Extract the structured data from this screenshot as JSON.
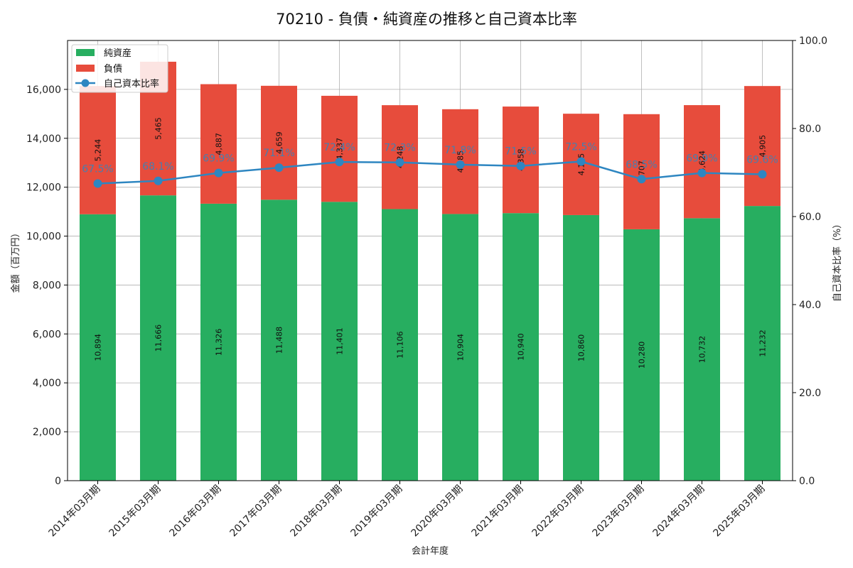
{
  "chart_data": {
    "type": "bar",
    "title": "70210 - 負債・純資産の推移と自己資本比率",
    "xlabel": "会計年度",
    "ylabel": "金額（百万円）",
    "y2label": "自己資本比率（%）",
    "ylim": [
      0,
      18000
    ],
    "y2lim": [
      0,
      100
    ],
    "yticks": [
      0,
      2000,
      4000,
      6000,
      8000,
      10000,
      12000,
      14000,
      16000
    ],
    "y2ticks": [
      0,
      20,
      40,
      60,
      80,
      100
    ],
    "ytick_labels": [
      "0",
      "2,000",
      "4,000",
      "6,000",
      "8,000",
      "10,000",
      "12,000",
      "14,000",
      "16,000"
    ],
    "y2tick_labels": [
      "0.0",
      "20.0",
      "40.0",
      "60.0",
      "80.0",
      "100.0"
    ],
    "grid": true,
    "legend_position": "top-left",
    "categories": [
      "2014年03月期",
      "2015年03月期",
      "2016年03月期",
      "2017年03月期",
      "2018年03月期",
      "2019年03月期",
      "2020年03月期",
      "2021年03月期",
      "2022年03月期",
      "2023年03月期",
      "2024年03月期",
      "2025年03月期"
    ],
    "series": [
      {
        "name": "純資産",
        "kind": "bar",
        "color": "#27ae60",
        "values": [
          10894,
          11666,
          11326,
          11488,
          11401,
          11106,
          10904,
          10940,
          10860,
          10280,
          10732,
          11232
        ],
        "labels": [
          "10,894",
          "11,666",
          "11,326",
          "11,488",
          "11,401",
          "11,106",
          "10,904",
          "10,940",
          "10,860",
          "10,280",
          "10,732",
          "11,232"
        ]
      },
      {
        "name": "負債",
        "kind": "bar",
        "color": "#e74c3c",
        "values": [
          5244,
          5465,
          4887,
          4659,
          4337,
          4248,
          4285,
          4358,
          4145,
          4707,
          4624,
          4905
        ],
        "labels": [
          "5,244",
          "5,465",
          "4,887",
          "4,659",
          "4,337",
          "4,248",
          "4,285",
          "4,358",
          "4,145",
          "4,707",
          "4,624",
          "4,905"
        ]
      },
      {
        "name": "自己資本比率",
        "kind": "line",
        "axis": "right",
        "color": "#2e86c1",
        "values": [
          67.5,
          68.1,
          69.9,
          71.1,
          72.4,
          72.3,
          71.8,
          71.5,
          72.5,
          68.5,
          69.9,
          69.6
        ],
        "labels": [
          "67.5%",
          "68.1%",
          "69.9%",
          "71.1%",
          "72.4%",
          "72.3%",
          "71.8%",
          "71.5%",
          "72.5%",
          "68.5%",
          "69.9%",
          "69.6%"
        ]
      }
    ]
  }
}
